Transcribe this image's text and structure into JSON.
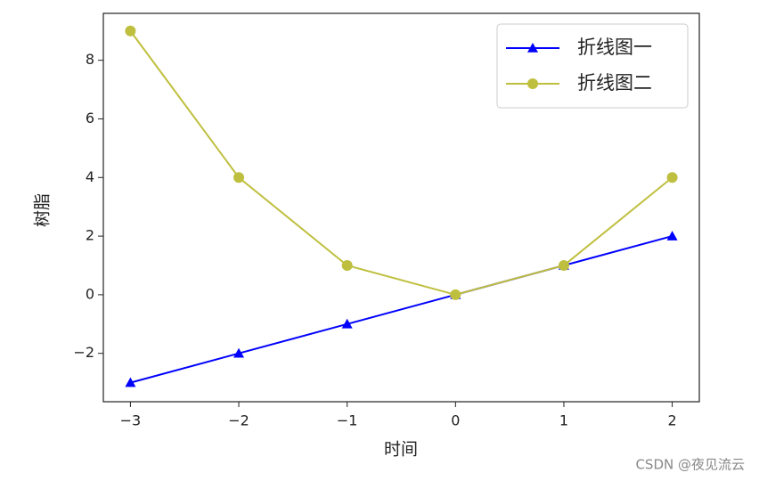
{
  "chart_data": {
    "type": "line",
    "xlabel": "时间",
    "ylabel": "树脂",
    "x": [
      -3,
      -2,
      -1,
      0,
      1,
      2
    ],
    "series": [
      {
        "name": "折线图一",
        "color": "#0000ff",
        "marker": "triangle",
        "values": [
          -3,
          -2,
          -1,
          0,
          1,
          2
        ]
      },
      {
        "name": "折线图二",
        "color": "#bfbf3f",
        "marker": "circle",
        "values": [
          9,
          4,
          1,
          0,
          1,
          4
        ]
      }
    ],
    "xlim": [
      -3.25,
      2.25
    ],
    "xticks": [
      {
        "value": -3,
        "label": "−3"
      },
      {
        "value": -2,
        "label": "−2"
      },
      {
        "value": -1,
        "label": "−1"
      },
      0,
      1,
      2
    ],
    "ylim": [
      -3.65,
      9.6
    ],
    "yticks": [
      {
        "value": -2,
        "label": "−2"
      },
      0,
      2,
      4,
      6,
      8
    ],
    "legend": "upper right",
    "grid": false
  },
  "watermark": "CSDN @夜见流云"
}
